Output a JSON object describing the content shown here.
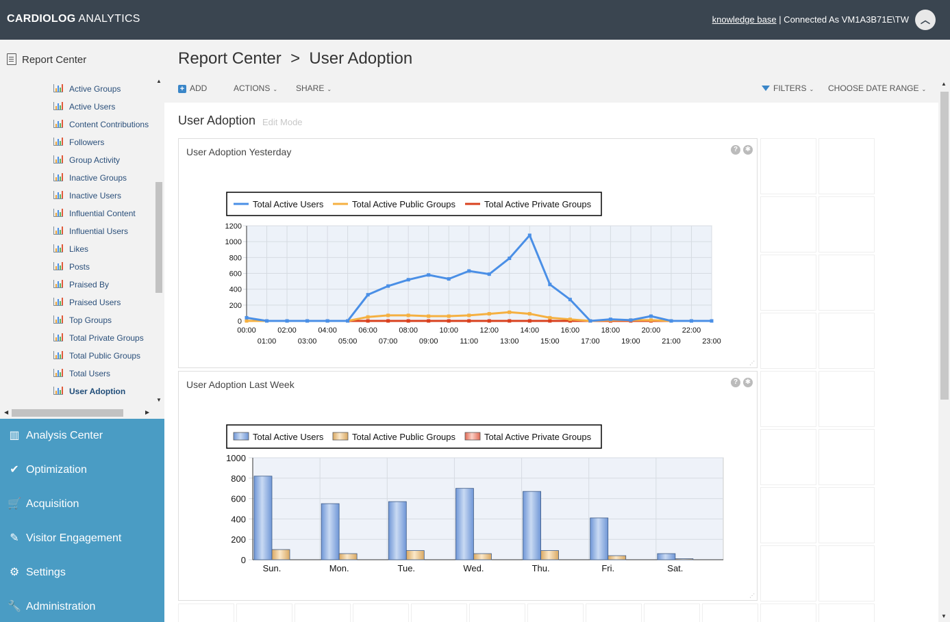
{
  "header": {
    "brand_bold": "CARDIOLOG",
    "brand_rest": " ANALYTICS",
    "kb_link": "knowledge base",
    "connected": " | Connected As VM1A3B71E\\TW"
  },
  "sidebar": {
    "report_center": "Report Center",
    "items": [
      {
        "label": "Active Groups"
      },
      {
        "label": "Active Users"
      },
      {
        "label": "Content Contributions"
      },
      {
        "label": "Followers"
      },
      {
        "label": "Group Activity"
      },
      {
        "label": "Inactive Groups"
      },
      {
        "label": "Inactive Users"
      },
      {
        "label": "Influential Content"
      },
      {
        "label": "Influential Users"
      },
      {
        "label": "Likes"
      },
      {
        "label": "Posts"
      },
      {
        "label": "Praised By"
      },
      {
        "label": "Praised Users"
      },
      {
        "label": "Top Groups"
      },
      {
        "label": "Total Private Groups"
      },
      {
        "label": "Total Public Groups"
      },
      {
        "label": "Total Users"
      },
      {
        "label": "User Adoption"
      }
    ],
    "active_item": "User Adoption"
  },
  "nav": {
    "items": [
      {
        "label": "Analysis Center",
        "icon": "bar-chart-icon"
      },
      {
        "label": "Optimization",
        "icon": "check-icon"
      },
      {
        "label": "Acquisition",
        "icon": "cart-icon"
      },
      {
        "label": "Visitor Engagement",
        "icon": "pencil-icon"
      },
      {
        "label": "Settings",
        "icon": "gears-icon"
      },
      {
        "label": "Administration",
        "icon": "wrench-icon"
      }
    ]
  },
  "main": {
    "breadcrumb": "Report Center  >  User Adoption",
    "toolbar": {
      "add": "ADD",
      "actions": "ACTIONS",
      "share": "SHARE",
      "filters": "FILTERS",
      "date_range": "CHOOSE DATE RANGE"
    },
    "page_title": "User Adoption",
    "edit_mode": "Edit Mode"
  },
  "colors": {
    "topbar": "#3a4550",
    "nav": "#4a9cc4",
    "users": "#4a8fe6",
    "public": "#f5b041",
    "private": "#d9411e"
  },
  "chart_data": [
    {
      "type": "line",
      "title": "User Adoption Yesterday",
      "x": [
        "00:00",
        "01:00",
        "02:00",
        "03:00",
        "04:00",
        "05:00",
        "06:00",
        "07:00",
        "08:00",
        "09:00",
        "10:00",
        "11:00",
        "12:00",
        "13:00",
        "14:00",
        "15:00",
        "16:00",
        "17:00",
        "18:00",
        "19:00",
        "20:00",
        "21:00",
        "22:00",
        "23:00"
      ],
      "ylim": [
        0,
        1200
      ],
      "yticks": [
        0,
        200,
        400,
        600,
        800,
        1000,
        1200
      ],
      "legend": "top",
      "series": [
        {
          "name": "Total Active Users",
          "values": [
            40,
            0,
            0,
            0,
            0,
            0,
            330,
            440,
            520,
            580,
            530,
            630,
            590,
            790,
            1080,
            460,
            270,
            0,
            20,
            10,
            60,
            0,
            0,
            0
          ]
        },
        {
          "name": "Total Active Public Groups",
          "values": [
            0,
            0,
            0,
            0,
            0,
            0,
            50,
            70,
            70,
            60,
            60,
            70,
            90,
            110,
            90,
            40,
            20,
            0,
            10,
            10,
            10,
            0,
            0,
            0
          ]
        },
        {
          "name": "Total Active Private Groups",
          "values": [
            0,
            0,
            0,
            0,
            0,
            0,
            0,
            0,
            0,
            0,
            0,
            0,
            0,
            0,
            0,
            0,
            0,
            0,
            0,
            0,
            0,
            0,
            0,
            0
          ]
        }
      ]
    },
    {
      "type": "bar",
      "title": "User Adoption Last Week",
      "categories": [
        "Sun.",
        "Mon.",
        "Tue.",
        "Wed.",
        "Thu.",
        "Fri.",
        "Sat."
      ],
      "ylim": [
        0,
        1000
      ],
      "yticks": [
        0,
        200,
        400,
        600,
        800,
        1000
      ],
      "legend": "top",
      "series": [
        {
          "name": "Total Active Users",
          "values": [
            820,
            550,
            570,
            700,
            670,
            410,
            60
          ]
        },
        {
          "name": "Total Active Public Groups",
          "values": [
            100,
            60,
            90,
            60,
            90,
            40,
            10
          ]
        },
        {
          "name": "Total Active Private Groups",
          "values": [
            0,
            0,
            0,
            0,
            0,
            0,
            0
          ]
        }
      ]
    }
  ]
}
